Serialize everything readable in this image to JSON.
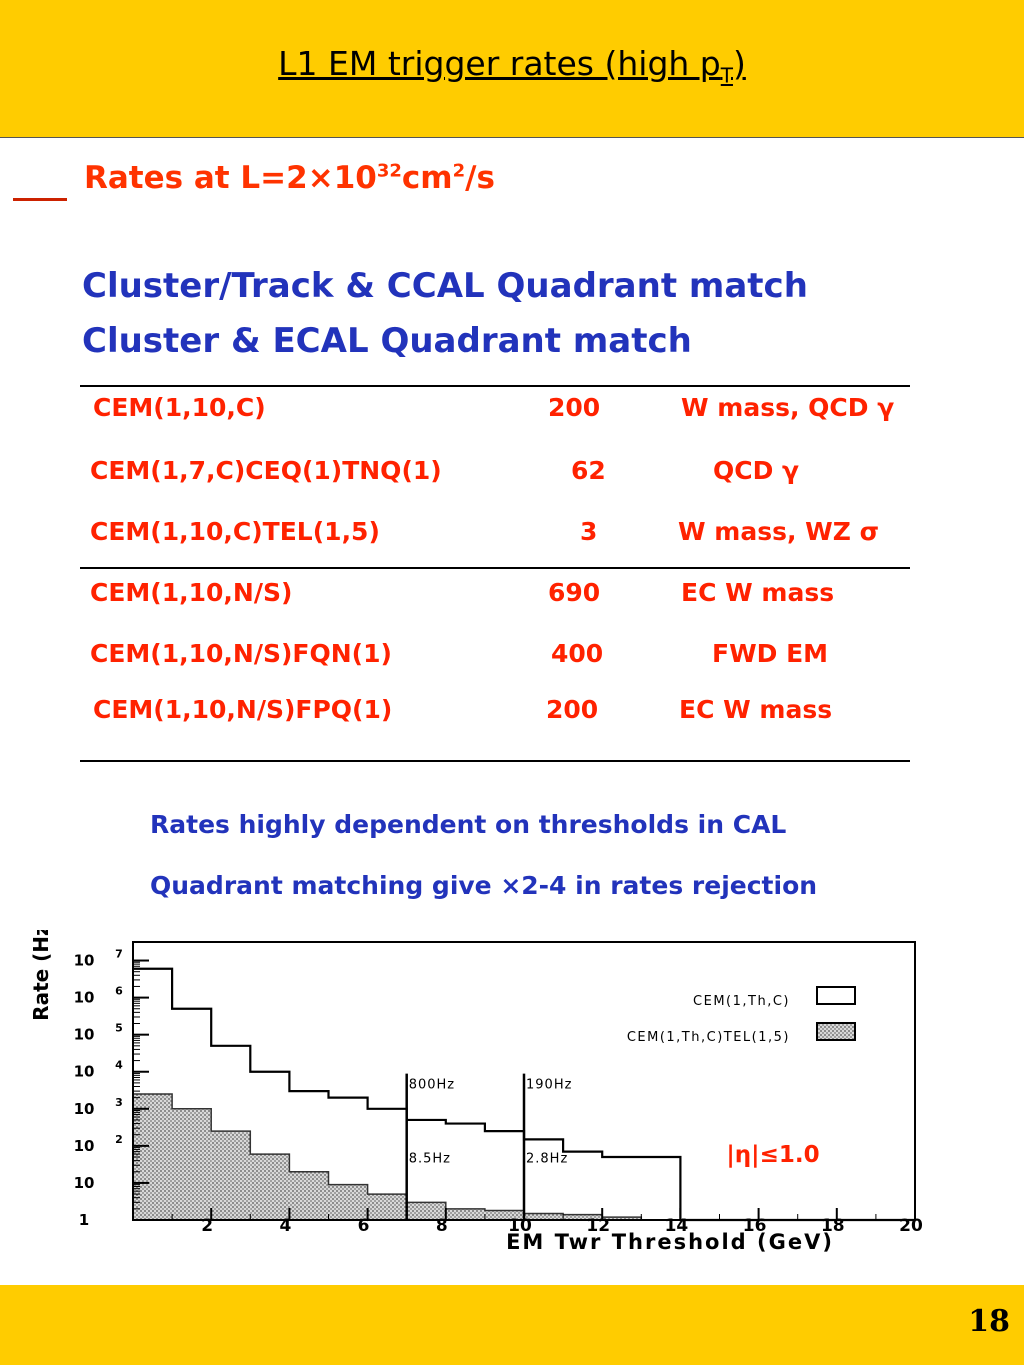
{
  "header": {
    "title_main": "L1 EM trigger rates (high p",
    "title_sub": "T",
    "title_close": ")"
  },
  "rates": {
    "prefix": "Rates at L=2",
    "times": "×",
    "base": "10",
    "exp": "32",
    "unit": "cm",
    "unit_exp": "2",
    "suffix": "/s"
  },
  "match_lines": [
    "Cluster/Track & CCAL Quadrant match",
    "Cluster & ECAL Quadrant match"
  ],
  "table": {
    "rows": [
      {
        "trigger": "CEM(1,10,C)",
        "rate": "200",
        "use": "W mass, QCD γ"
      },
      {
        "trigger": "CEM(1,7,C)CEQ(1)TNQ(1)",
        "rate": "62",
        "use": "QCD γ"
      },
      {
        "trigger": "CEM(1,10,C)TEL(1,5)",
        "rate": "3",
        "use": "W mass, WZ σ"
      },
      {
        "trigger": "CEM(1,10,N/S)",
        "rate": "690",
        "use": "EC W mass"
      },
      {
        "trigger": "CEM(1,10,N/S)FQN(1)",
        "rate": "400",
        "use": "FWD EM"
      },
      {
        "trigger": "CEM(1,10,N/S)FPQ(1)",
        "rate": "200",
        "use": "EC W mass"
      }
    ]
  },
  "notes": [
    "Rates highly dependent on thresholds in CAL",
    "Quadrant matching give ×2-4 in rates rejection"
  ],
  "chart_data": {
    "type": "bar",
    "title": "",
    "xlabel": "EM Twr Threshold (GeV)",
    "ylabel": "Rate (Hz)",
    "xlim": [
      0,
      20
    ],
    "ylim_log10": [
      0,
      7.5
    ],
    "log_y": true,
    "x_ticks": [
      "2",
      "4",
      "6",
      "8",
      "10",
      "12",
      "14",
      "16",
      "18",
      "20"
    ],
    "y_ticks": [
      {
        "base": "1",
        "exp": "",
        "log": 0
      },
      {
        "base": "10",
        "exp": "",
        "log": 1
      },
      {
        "base": "10",
        "exp": "2",
        "log": 2
      },
      {
        "base": "10",
        "exp": "3",
        "log": 3
      },
      {
        "base": "10",
        "exp": "4",
        "log": 4
      },
      {
        "base": "10",
        "exp": "5",
        "log": 5
      },
      {
        "base": "10",
        "exp": "6",
        "log": 6
      },
      {
        "base": "10",
        "exp": "7",
        "log": 7
      }
    ],
    "bin_edges": [
      0,
      1,
      2,
      3,
      4,
      5,
      6,
      7,
      8,
      9,
      10,
      11,
      12,
      13,
      14,
      15,
      16,
      17,
      18,
      19,
      20
    ],
    "series": [
      {
        "name": "CEM(1,Th,C)",
        "style": "open",
        "values": [
          6000000,
          500000,
          50000,
          10000,
          3000,
          2000,
          1000,
          500,
          400,
          250,
          150,
          70,
          50,
          50,
          1,
          1,
          1,
          1,
          1,
          1
        ]
      },
      {
        "name": "CEM(1,Th,C)TEL(1,5)",
        "style": "hatched",
        "values": [
          2500,
          1000,
          250,
          60,
          20,
          9,
          5,
          3,
          2,
          1.8,
          1.5,
          1.4,
          1.2,
          1,
          1,
          1,
          1,
          1,
          1,
          1
        ]
      }
    ],
    "vertical_lines": [
      {
        "x": 7,
        "label_top": "800Hz",
        "label_bottom": "8.5Hz"
      },
      {
        "x": 10,
        "label_top": "190Hz",
        "label_bottom": "2.8Hz"
      }
    ],
    "annotation": "|η|≤1.0",
    "legend_position": "top-right",
    "colors": {
      "hatch": "#bbbbbb",
      "line": "#000000",
      "annotation": "#ff2200"
    }
  },
  "footer": {
    "page": "18"
  }
}
